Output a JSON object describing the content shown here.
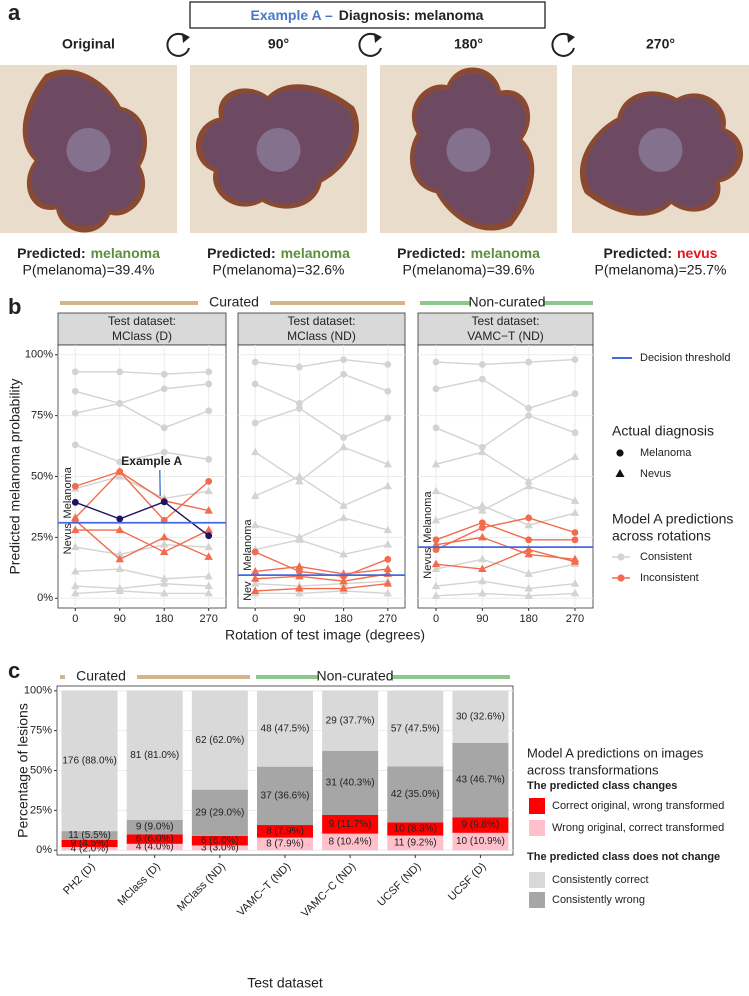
{
  "panel_labels": [
    "a",
    "b",
    "c"
  ],
  "panel_a": {
    "title_prefix": "Example A –",
    "title": "Diagnosis: melanoma",
    "views": [
      {
        "label": "Original",
        "predicted": "Predicted:",
        "class": "melanoma",
        "class_color": "#5a8f3c",
        "probability": "P(melanoma)=39.4%"
      },
      {
        "label": "90°",
        "predicted": "Predicted:",
        "class": "melanoma",
        "class_color": "#5a8f3c",
        "probability": "P(melanoma)=32.6%"
      },
      {
        "label": "180°",
        "predicted": "Predicted:",
        "class": "melanoma",
        "class_color": "#5a8f3c",
        "probability": "P(melanoma)=39.6%"
      },
      {
        "label": "270°",
        "predicted": "Predicted:",
        "class": "nevus",
        "class_color": "#e8141b",
        "probability": "P(melanoma)=25.7%"
      }
    ]
  },
  "panel_b": {
    "groups": [
      {
        "label": "Curated",
        "color": "#d4b48c"
      },
      {
        "label": "Non-curated",
        "color": "#8cc78c"
      }
    ],
    "ylabel": "Predicted melanoma probability",
    "xlabel": "Rotation of test image (degrees)",
    "legend": {
      "threshold": "Decision threshold",
      "threshold_color": "#4169e1",
      "diagnosis_title": "Actual diagnosis",
      "diagnosis": [
        "Melanoma",
        "Nevus"
      ],
      "consistency_title": [
        "Model A predictions",
        "across rotations"
      ],
      "consistency": [
        {
          "name": "Consistent",
          "color": "#d3d3d3"
        },
        {
          "name": "Inconsistent",
          "color": "#f26b4d"
        }
      ]
    }
  },
  "chart_data": [
    {
      "type": "line",
      "title": "Test dataset:",
      "subtitle": "MClass (D)",
      "x": [
        0,
        90,
        180,
        270
      ],
      "xticks": [
        0,
        90,
        180,
        270
      ],
      "xlim": [
        -35,
        305
      ],
      "ylim": [
        -4,
        104
      ],
      "yticks": [
        {
          "value": 0,
          "label": "0%"
        },
        {
          "value": 25,
          "label": "25%"
        },
        {
          "value": 50,
          "label": "50%"
        },
        {
          "value": 75,
          "label": "75%"
        },
        {
          "value": 100,
          "label": "100%"
        }
      ],
      "grid": true,
      "threshold": 31,
      "annotations": [
        {
          "text": "Melanoma"
        },
        {
          "text": "Nevus"
        }
      ],
      "example_label": {
        "text": "Example A",
        "color": "#4a78c8"
      },
      "series": [
        {
          "color": "#d3d3d3",
          "shape": "circle",
          "values": [
            93,
            93,
            92,
            93
          ]
        },
        {
          "color": "#d3d3d3",
          "shape": "circle",
          "values": [
            85,
            80,
            86,
            88
          ]
        },
        {
          "color": "#d3d3d3",
          "shape": "circle",
          "values": [
            76,
            80,
            70,
            77
          ]
        },
        {
          "color": "#d3d3d3",
          "shape": "circle",
          "values": [
            63,
            56,
            60,
            57
          ]
        },
        {
          "color": "#d3d3d3",
          "shape": "triangle",
          "values": [
            45,
            50,
            41,
            44
          ]
        },
        {
          "color": "#d3d3d3",
          "shape": "triangle",
          "values": [
            21,
            18,
            22,
            21
          ]
        },
        {
          "color": "#d3d3d3",
          "shape": "triangle",
          "values": [
            11,
            12,
            8,
            9
          ]
        },
        {
          "color": "#d3d3d3",
          "shape": "triangle",
          "values": [
            5,
            4,
            6,
            5
          ]
        },
        {
          "color": "#d3d3d3",
          "shape": "triangle",
          "values": [
            2,
            3,
            2,
            2
          ]
        },
        {
          "color": "#f26b4d",
          "shape": "circle",
          "values": [
            46,
            52,
            32,
            48
          ]
        },
        {
          "color": "#f26b4d",
          "shape": "triangle",
          "values": [
            33,
            52,
            40,
            36
          ]
        },
        {
          "color": "#f26b4d",
          "shape": "triangle",
          "values": [
            32,
            16,
            25,
            17
          ]
        },
        {
          "color": "#f26b4d",
          "shape": "triangle",
          "values": [
            28,
            28,
            19,
            28
          ]
        },
        {
          "color": "#1b1464",
          "shape": "circle",
          "values": [
            39.4,
            32.6,
            39.6,
            25.7
          ]
        }
      ]
    },
    {
      "type": "line",
      "title": "Test dataset:",
      "subtitle": "MClass (ND)",
      "x": [
        0,
        90,
        180,
        270
      ],
      "xticks": [
        0,
        90,
        180,
        270
      ],
      "xlim": [
        -35,
        305
      ],
      "ylim": [
        -4,
        104
      ],
      "yticks": [
        0,
        25,
        50,
        75,
        100
      ],
      "grid": true,
      "threshold": 9.5,
      "annotations": [
        {
          "text": "Melanoma"
        },
        {
          "text": "Nev"
        }
      ],
      "series": [
        {
          "color": "#d3d3d3",
          "shape": "circle",
          "values": [
            97,
            95,
            98,
            96
          ]
        },
        {
          "color": "#d3d3d3",
          "shape": "circle",
          "values": [
            88,
            80,
            92,
            85
          ]
        },
        {
          "color": "#d3d3d3",
          "shape": "circle",
          "values": [
            72,
            78,
            66,
            74
          ]
        },
        {
          "color": "#d3d3d3",
          "shape": "triangle",
          "values": [
            60,
            48,
            62,
            55
          ]
        },
        {
          "color": "#d3d3d3",
          "shape": "triangle",
          "values": [
            42,
            50,
            38,
            46
          ]
        },
        {
          "color": "#d3d3d3",
          "shape": "triangle",
          "values": [
            30,
            25,
            33,
            28
          ]
        },
        {
          "color": "#d3d3d3",
          "shape": "triangle",
          "values": [
            20,
            24,
            18,
            22
          ]
        },
        {
          "color": "#d3d3d3",
          "shape": "triangle",
          "values": [
            6,
            5,
            6,
            7
          ]
        },
        {
          "color": "#d3d3d3",
          "shape": "triangle",
          "values": [
            2,
            2,
            3,
            2
          ]
        },
        {
          "color": "#f26b4d",
          "shape": "circle",
          "values": [
            19,
            11,
            9,
            16
          ]
        },
        {
          "color": "#f26b4d",
          "shape": "triangle",
          "values": [
            11,
            13,
            10,
            12
          ]
        },
        {
          "color": "#f26b4d",
          "shape": "triangle",
          "values": [
            8,
            9,
            7,
            10
          ]
        },
        {
          "color": "#f26b4d",
          "shape": "triangle",
          "values": [
            3,
            4,
            4,
            6
          ]
        }
      ]
    },
    {
      "type": "line",
      "title": "Test dataset:",
      "subtitle": "VAMC−T (ND)",
      "x": [
        0,
        90,
        180,
        270
      ],
      "xticks": [
        0,
        90,
        180,
        270
      ],
      "xlim": [
        -35,
        305
      ],
      "ylim": [
        -4,
        104
      ],
      "yticks": [
        0,
        25,
        50,
        75,
        100
      ],
      "grid": true,
      "threshold": 21,
      "annotations": [
        {
          "text": "Melanoma"
        },
        {
          "text": "Nevus"
        }
      ],
      "series": [
        {
          "color": "#d3d3d3",
          "shape": "circle",
          "values": [
            97,
            96,
            97,
            98
          ]
        },
        {
          "color": "#d3d3d3",
          "shape": "circle",
          "values": [
            86,
            90,
            78,
            84
          ]
        },
        {
          "color": "#d3d3d3",
          "shape": "circle",
          "values": [
            70,
            62,
            75,
            68
          ]
        },
        {
          "color": "#d3d3d3",
          "shape": "triangle",
          "values": [
            55,
            60,
            48,
            58
          ]
        },
        {
          "color": "#d3d3d3",
          "shape": "triangle",
          "values": [
            44,
            36,
            46,
            40
          ]
        },
        {
          "color": "#d3d3d3",
          "shape": "triangle",
          "values": [
            32,
            38,
            30,
            35
          ]
        },
        {
          "color": "#d3d3d3",
          "shape": "triangle",
          "values": [
            12,
            16,
            10,
            14
          ]
        },
        {
          "color": "#d3d3d3",
          "shape": "triangle",
          "values": [
            5,
            7,
            4,
            6
          ]
        },
        {
          "color": "#d3d3d3",
          "shape": "triangle",
          "values": [
            1,
            2,
            1,
            2
          ]
        },
        {
          "color": "#f26b4d",
          "shape": "circle",
          "values": [
            24,
            31,
            24,
            24
          ]
        },
        {
          "color": "#f26b4d",
          "shape": "circle",
          "values": [
            20,
            29,
            33,
            27
          ]
        },
        {
          "color": "#f26b4d",
          "shape": "triangle",
          "values": [
            14,
            12,
            20,
            15
          ]
        },
        {
          "color": "#f26b4d",
          "shape": "triangle",
          "values": [
            22,
            25,
            18,
            16
          ]
        }
      ]
    },
    {
      "type": "stacked_bar",
      "categories": [
        "PH2 (D)",
        "MClass (D)",
        "MClass (ND)",
        "VAMC−T (ND)",
        "VAMC−C (ND)",
        "UCSF (ND)",
        "UCSF (D)"
      ],
      "groups": [
        {
          "label": "Curated",
          "color": "#d4b48c"
        },
        {
          "label": "Non-curated",
          "color": "#8cc78c"
        }
      ],
      "ylabel": "Percentage of lesions",
      "xlabel": "Test dataset",
      "ylim": [
        -3,
        103
      ],
      "yticks": [
        {
          "value": 0,
          "label": "0%"
        },
        {
          "value": 25,
          "label": "25%"
        },
        {
          "value": 50,
          "label": "50%"
        },
        {
          "value": 75,
          "label": "75%"
        },
        {
          "value": 100,
          "label": "100%"
        }
      ],
      "grid": true,
      "legend_title": [
        "Model A predictions on images",
        "across transformations"
      ],
      "legend_headers": [
        "The predicted class changes",
        "The predicted class does not change"
      ],
      "series": [
        {
          "name": "Wrong original, correct transformed",
          "color": "#ffc0cb",
          "values": [
            2.0,
            4.0,
            3.0,
            7.9,
            10.4,
            9.2,
            10.9
          ],
          "value_labels": [
            "4 (2.0%)",
            "4 (4.0%)",
            "3 (3.0%)",
            "8 (7.9%)",
            "8 (10.4%)",
            "11 (9.2%)",
            "10 (10.9%)"
          ]
        },
        {
          "name": "Correct original, wrong transformed",
          "color": "#ff0000",
          "values": [
            4.5,
            6.0,
            6.0,
            7.9,
            11.7,
            8.3,
            9.8
          ],
          "value_labels": [
            "9 (4.5%)",
            "6 (6.0%)",
            "6 (6.0%)",
            "8 (7.9%)",
            "9 (11.7%)",
            "10 (8.3%)",
            "9 (9.8%)"
          ]
        },
        {
          "name": "Consistently wrong",
          "color": "#a6a6a6",
          "values": [
            5.5,
            9.0,
            29.0,
            36.6,
            40.3,
            35.0,
            46.7
          ],
          "value_labels": [
            "11 (5.5%)",
            "9 (9.0%)",
            "29 (29.0%)",
            "37 (36.6%)",
            "31 (40.3%)",
            "42 (35.0%)",
            "43 (46.7%)"
          ]
        },
        {
          "name": "Consistently correct",
          "color": "#d9d9d9",
          "values": [
            88.0,
            81.0,
            62.0,
            47.5,
            37.7,
            47.5,
            32.6
          ],
          "value_labels": [
            "176 (88.0%)",
            "81 (81.0%)",
            "62 (62.0%)",
            "48 (47.5%)",
            "29 (37.7%)",
            "57 (47.5%)",
            "30 (32.6%)"
          ]
        }
      ]
    }
  ]
}
